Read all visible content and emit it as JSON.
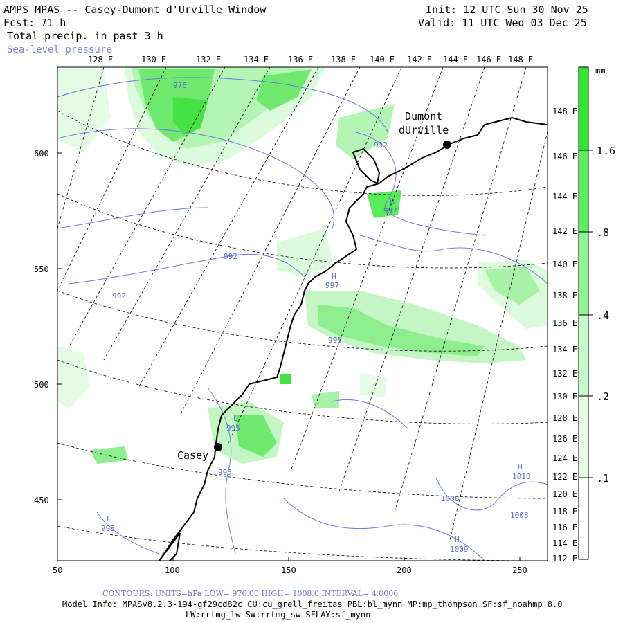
{
  "header": {
    "title": "AMPS MPAS -- Casey-Dumont d'Urville Window",
    "fcst": "Fcst:    71 h",
    "field": "Total precip. in past 3 h",
    "overlay": "Sea-level pressure",
    "init": "Init: 12 UTC Sun 30 Nov 25",
    "valid": "Valid: 11 UTC Wed 03 Dec 25"
  },
  "axes": {
    "top_lon_labels": [
      "128 E",
      "130 E",
      "132 E",
      "134 E",
      "136 E",
      "138 E",
      "140 E",
      "142 E",
      "144 E",
      "146 E",
      "148 E"
    ],
    "right_lon_labels": [
      "148 E",
      "146 E",
      "144 E",
      "142 E",
      "140 E",
      "138 E",
      "136 E",
      "134 E",
      "132 E",
      "130 E",
      "128 E",
      "126 E",
      "124 E",
      "122 E",
      "120 E",
      "118 E",
      "116 E",
      "114 E",
      "112 E"
    ],
    "left_y_labels": [
      "600",
      "550",
      "500",
      "450"
    ],
    "bottom_x_labels": [
      "50",
      "100",
      "150",
      "200",
      "250"
    ]
  },
  "colorbar": {
    "units": "mm",
    "labels": [
      "1.6",
      ".8",
      ".4",
      ".2",
      ".1"
    ],
    "colors": [
      "#2ee82e",
      "#5aee5a",
      "#8ef48e",
      "#c6fac6",
      "#e6fde6",
      "#ffffff"
    ]
  },
  "stations": [
    {
      "name": "Dumont",
      "name2": "dUrville"
    },
    {
      "name": "Casey"
    }
  ],
  "contour_labels": [
    "976",
    "992",
    "992",
    "992",
    "H",
    "997",
    "H",
    "997",
    "995",
    "L",
    "995",
    "995",
    "L",
    "995",
    "H",
    "1010",
    "1008",
    "1008",
    "H",
    "1009"
  ],
  "footer": {
    "contours": "CONTOURS:  UNITS=hPa  LOW=  976.00     HIGH=  1008.0     INTERVAL=   4.0000",
    "model_info": "Model Info: MPASv8.2.3-194-gf29cd82c CU:cu_grell_freitas PBL:bl_mynn MP:mp_thompson SF:sf_noahmp 8.0",
    "schemes": "LW:rrtmg_lw SW:rrtmg_sw SFLAY:sf_mynn"
  }
}
